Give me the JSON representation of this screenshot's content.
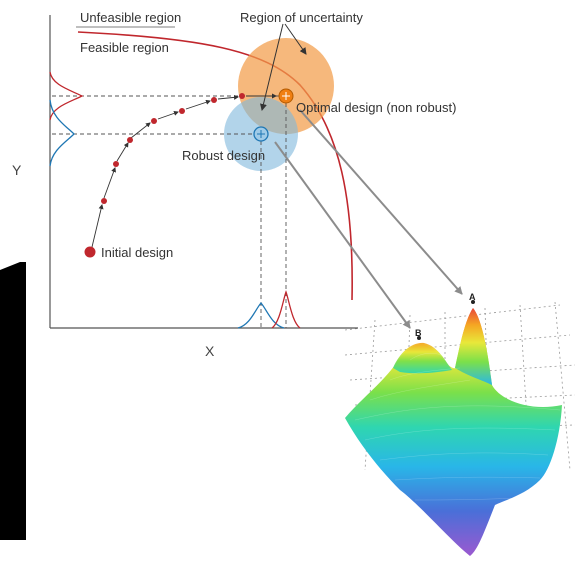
{
  "labels": {
    "unfeasible_region": "Unfeasible region",
    "feasible_region": "Feasible region",
    "region_of_uncertainty": "Region of uncertainty",
    "optimal_design": "Optimal design (non robust)",
    "robust_design": "Robust design",
    "initial_design": "Initial design"
  },
  "axes": {
    "x": "X",
    "y": "Y"
  },
  "surface_points": {
    "a": "A",
    "b": "B"
  },
  "colors": {
    "constraint_curve": "#c0272d",
    "design_point": "#c0272d",
    "optimal_region": "#f39c4a",
    "robust_region": "#7fb8dc",
    "optimal_marker": "#f07f12",
    "robust_marker": "#1f77b4",
    "arrow_gray": "#8c8c8c"
  },
  "surface_palette": [
    "#9b59d0",
    "#4a6fd8",
    "#29b6e8",
    "#2fd6b0",
    "#7be04a",
    "#e8e83a",
    "#f5a623",
    "#e8473a"
  ]
}
